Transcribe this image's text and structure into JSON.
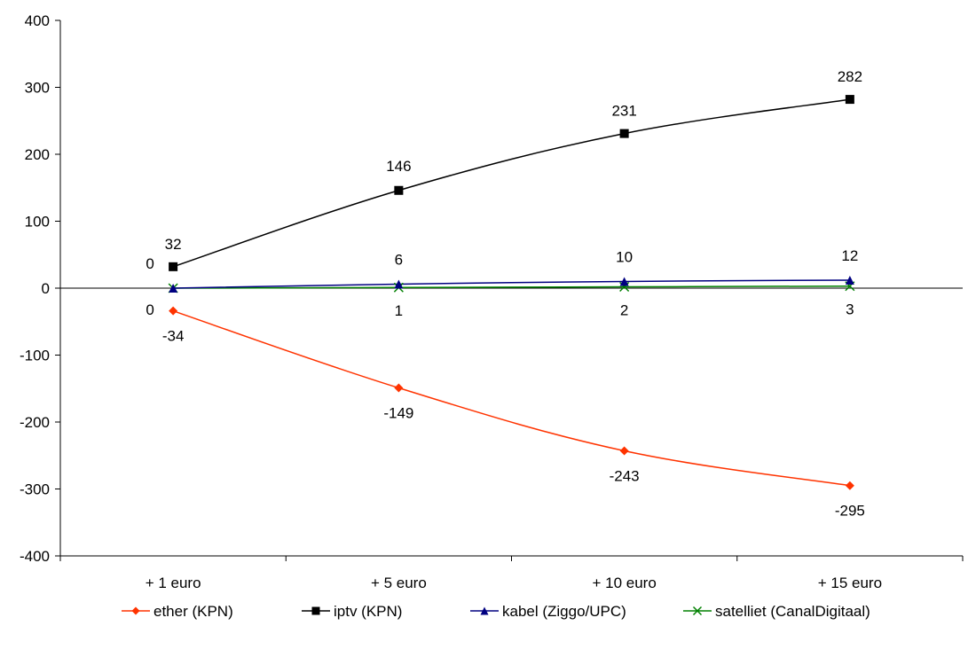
{
  "chart_data": {
    "type": "line",
    "title": "",
    "xlabel": "",
    "ylabel": "",
    "categories": [
      "+ 1 euro",
      "+ 5 euro",
      "+ 10 euro",
      "+ 15 euro"
    ],
    "ylim": [
      -400,
      400
    ],
    "yticks": [
      -400,
      -300,
      -200,
      -100,
      0,
      100,
      200,
      300,
      400
    ],
    "grid": false,
    "legend_position": "bottom",
    "series": [
      {
        "name": "ether (KPN)",
        "values": [
          -34,
          -149,
          -243,
          -295
        ],
        "color": "#ff3300",
        "marker": "diamond",
        "labels": [
          "-34",
          "-149",
          "-243",
          "-295"
        ]
      },
      {
        "name": "iptv (KPN)",
        "values": [
          32,
          146,
          231,
          282
        ],
        "color": "#000000",
        "marker": "square",
        "labels": [
          "32",
          "146",
          "231",
          "282"
        ]
      },
      {
        "name": "kabel (Ziggo/UPC)",
        "values": [
          0,
          6,
          10,
          12
        ],
        "color": "#000080",
        "marker": "triangle",
        "labels": [
          "0",
          "6",
          "10",
          "12"
        ]
      },
      {
        "name": "satelliet (CanalDigitaal)",
        "values": [
          0,
          1,
          2,
          3
        ],
        "color": "#008000",
        "marker": "x",
        "labels": [
          "0",
          "1",
          "2",
          "3"
        ]
      }
    ]
  }
}
